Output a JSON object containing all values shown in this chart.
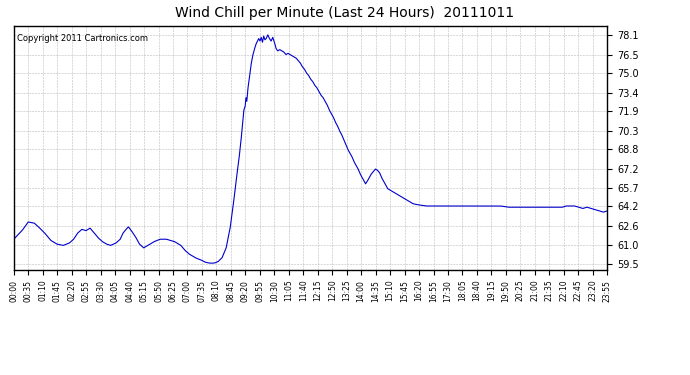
{
  "title": "Wind Chill per Minute (Last 24 Hours)  20111011",
  "copyright_text": "Copyright 2011 Cartronics.com",
  "line_color": "#0000cc",
  "background_color": "#ffffff",
  "plot_bg_color": "#ffffff",
  "grid_color": "#aaaaaa",
  "yticks": [
    59.5,
    61.0,
    62.6,
    64.2,
    65.7,
    67.2,
    68.8,
    70.3,
    71.9,
    73.4,
    75.0,
    76.5,
    78.1
  ],
  "ylim": [
    59.0,
    78.8
  ],
  "xtick_labels": [
    "00:00",
    "00:35",
    "01:10",
    "01:45",
    "02:20",
    "02:55",
    "03:30",
    "04:05",
    "04:40",
    "05:15",
    "05:50",
    "06:25",
    "07:00",
    "07:35",
    "08:10",
    "08:45",
    "09:20",
    "09:55",
    "10:30",
    "11:05",
    "11:40",
    "12:15",
    "12:50",
    "13:25",
    "14:00",
    "14:35",
    "15:10",
    "15:45",
    "16:20",
    "16:55",
    "17:30",
    "18:05",
    "18:40",
    "19:15",
    "19:50",
    "20:25",
    "21:00",
    "21:35",
    "22:10",
    "22:45",
    "23:20",
    "23:55"
  ],
  "n_points": 1440,
  "data_keypoints": [
    [
      0,
      61.5
    ],
    [
      20,
      62.2
    ],
    [
      35,
      62.9
    ],
    [
      50,
      62.8
    ],
    [
      60,
      62.5
    ],
    [
      75,
      62.0
    ],
    [
      90,
      61.4
    ],
    [
      105,
      61.1
    ],
    [
      120,
      61.0
    ],
    [
      135,
      61.2
    ],
    [
      145,
      61.5
    ],
    [
      155,
      62.0
    ],
    [
      165,
      62.3
    ],
    [
      175,
      62.2
    ],
    [
      185,
      62.4
    ],
    [
      195,
      62.0
    ],
    [
      205,
      61.6
    ],
    [
      215,
      61.3
    ],
    [
      225,
      61.1
    ],
    [
      235,
      61.0
    ],
    [
      248,
      61.2
    ],
    [
      258,
      61.5
    ],
    [
      265,
      62.0
    ],
    [
      272,
      62.3
    ],
    [
      278,
      62.5
    ],
    [
      285,
      62.2
    ],
    [
      295,
      61.7
    ],
    [
      305,
      61.1
    ],
    [
      315,
      60.8
    ],
    [
      325,
      61.0
    ],
    [
      340,
      61.3
    ],
    [
      355,
      61.5
    ],
    [
      370,
      61.5
    ],
    [
      390,
      61.3
    ],
    [
      405,
      61.0
    ],
    [
      415,
      60.6
    ],
    [
      425,
      60.3
    ],
    [
      440,
      60.0
    ],
    [
      455,
      59.8
    ],
    [
      463,
      59.65
    ],
    [
      472,
      59.57
    ],
    [
      480,
      59.55
    ],
    [
      488,
      59.58
    ],
    [
      496,
      59.7
    ],
    [
      505,
      60.0
    ],
    [
      515,
      60.8
    ],
    [
      525,
      62.5
    ],
    [
      533,
      64.5
    ],
    [
      540,
      66.5
    ],
    [
      546,
      68.0
    ],
    [
      551,
      69.5
    ],
    [
      555,
      71.0
    ],
    [
      558,
      72.0
    ],
    [
      561,
      72.3
    ],
    [
      563,
      73.0
    ],
    [
      565,
      72.7
    ],
    [
      568,
      73.8
    ],
    [
      572,
      74.8
    ],
    [
      576,
      75.8
    ],
    [
      580,
      76.5
    ],
    [
      584,
      77.0
    ],
    [
      588,
      77.4
    ],
    [
      591,
      77.6
    ],
    [
      594,
      77.8
    ],
    [
      597,
      77.6
    ],
    [
      600,
      77.9
    ],
    [
      603,
      77.5
    ],
    [
      606,
      78.0
    ],
    [
      609,
      77.7
    ],
    [
      612,
      77.8
    ],
    [
      616,
      78.1
    ],
    [
      620,
      77.8
    ],
    [
      624,
      77.6
    ],
    [
      628,
      77.9
    ],
    [
      632,
      77.5
    ],
    [
      636,
      77.0
    ],
    [
      640,
      76.8
    ],
    [
      645,
      76.9
    ],
    [
      650,
      76.8
    ],
    [
      655,
      76.7
    ],
    [
      660,
      76.5
    ],
    [
      665,
      76.6
    ],
    [
      670,
      76.5
    ],
    [
      675,
      76.4
    ],
    [
      680,
      76.3
    ],
    [
      685,
      76.2
    ],
    [
      690,
      76.0
    ],
    [
      695,
      75.8
    ],
    [
      700,
      75.5
    ],
    [
      705,
      75.3
    ],
    [
      710,
      75.0
    ],
    [
      715,
      74.8
    ],
    [
      720,
      74.5
    ],
    [
      725,
      74.3
    ],
    [
      730,
      74.0
    ],
    [
      735,
      73.8
    ],
    [
      740,
      73.5
    ],
    [
      745,
      73.2
    ],
    [
      750,
      73.0
    ],
    [
      755,
      72.7
    ],
    [
      760,
      72.4
    ],
    [
      765,
      72.0
    ],
    [
      770,
      71.7
    ],
    [
      775,
      71.4
    ],
    [
      780,
      71.0
    ],
    [
      785,
      70.7
    ],
    [
      790,
      70.3
    ],
    [
      795,
      70.0
    ],
    [
      800,
      69.6
    ],
    [
      805,
      69.2
    ],
    [
      810,
      68.8
    ],
    [
      815,
      68.5
    ],
    [
      820,
      68.2
    ],
    [
      825,
      67.8
    ],
    [
      830,
      67.5
    ],
    [
      835,
      67.2
    ],
    [
      840,
      66.8
    ],
    [
      845,
      66.5
    ],
    [
      850,
      66.2
    ],
    [
      853,
      66.0
    ],
    [
      857,
      66.2
    ],
    [
      862,
      66.5
    ],
    [
      867,
      66.8
    ],
    [
      872,
      67.0
    ],
    [
      877,
      67.2
    ],
    [
      882,
      67.1
    ],
    [
      887,
      66.9
    ],
    [
      892,
      66.5
    ],
    [
      897,
      66.2
    ],
    [
      902,
      65.9
    ],
    [
      907,
      65.6
    ],
    [
      912,
      65.5
    ],
    [
      917,
      65.4
    ],
    [
      922,
      65.3
    ],
    [
      927,
      65.2
    ],
    [
      932,
      65.1
    ],
    [
      937,
      65.0
    ],
    [
      942,
      64.9
    ],
    [
      947,
      64.8
    ],
    [
      952,
      64.7
    ],
    [
      957,
      64.6
    ],
    [
      962,
      64.5
    ],
    [
      967,
      64.4
    ],
    [
      972,
      64.35
    ],
    [
      980,
      64.3
    ],
    [
      990,
      64.25
    ],
    [
      1000,
      64.2
    ],
    [
      1020,
      64.2
    ],
    [
      1040,
      64.2
    ],
    [
      1060,
      64.2
    ],
    [
      1080,
      64.2
    ],
    [
      1100,
      64.2
    ],
    [
      1120,
      64.2
    ],
    [
      1130,
      64.2
    ],
    [
      1140,
      64.2
    ],
    [
      1150,
      64.2
    ],
    [
      1160,
      64.2
    ],
    [
      1170,
      64.2
    ],
    [
      1180,
      64.2
    ],
    [
      1190,
      64.15
    ],
    [
      1200,
      64.1
    ],
    [
      1210,
      64.1
    ],
    [
      1220,
      64.1
    ],
    [
      1230,
      64.1
    ],
    [
      1240,
      64.1
    ],
    [
      1250,
      64.1
    ],
    [
      1260,
      64.1
    ],
    [
      1270,
      64.1
    ],
    [
      1280,
      64.1
    ],
    [
      1290,
      64.1
    ],
    [
      1300,
      64.1
    ],
    [
      1310,
      64.1
    ],
    [
      1320,
      64.1
    ],
    [
      1330,
      64.1
    ],
    [
      1340,
      64.2
    ],
    [
      1350,
      64.2
    ],
    [
      1360,
      64.2
    ],
    [
      1370,
      64.1
    ],
    [
      1380,
      64.0
    ],
    [
      1390,
      64.1
    ],
    [
      1400,
      64.0
    ],
    [
      1410,
      63.9
    ],
    [
      1420,
      63.8
    ],
    [
      1430,
      63.7
    ],
    [
      1439,
      63.8
    ]
  ]
}
